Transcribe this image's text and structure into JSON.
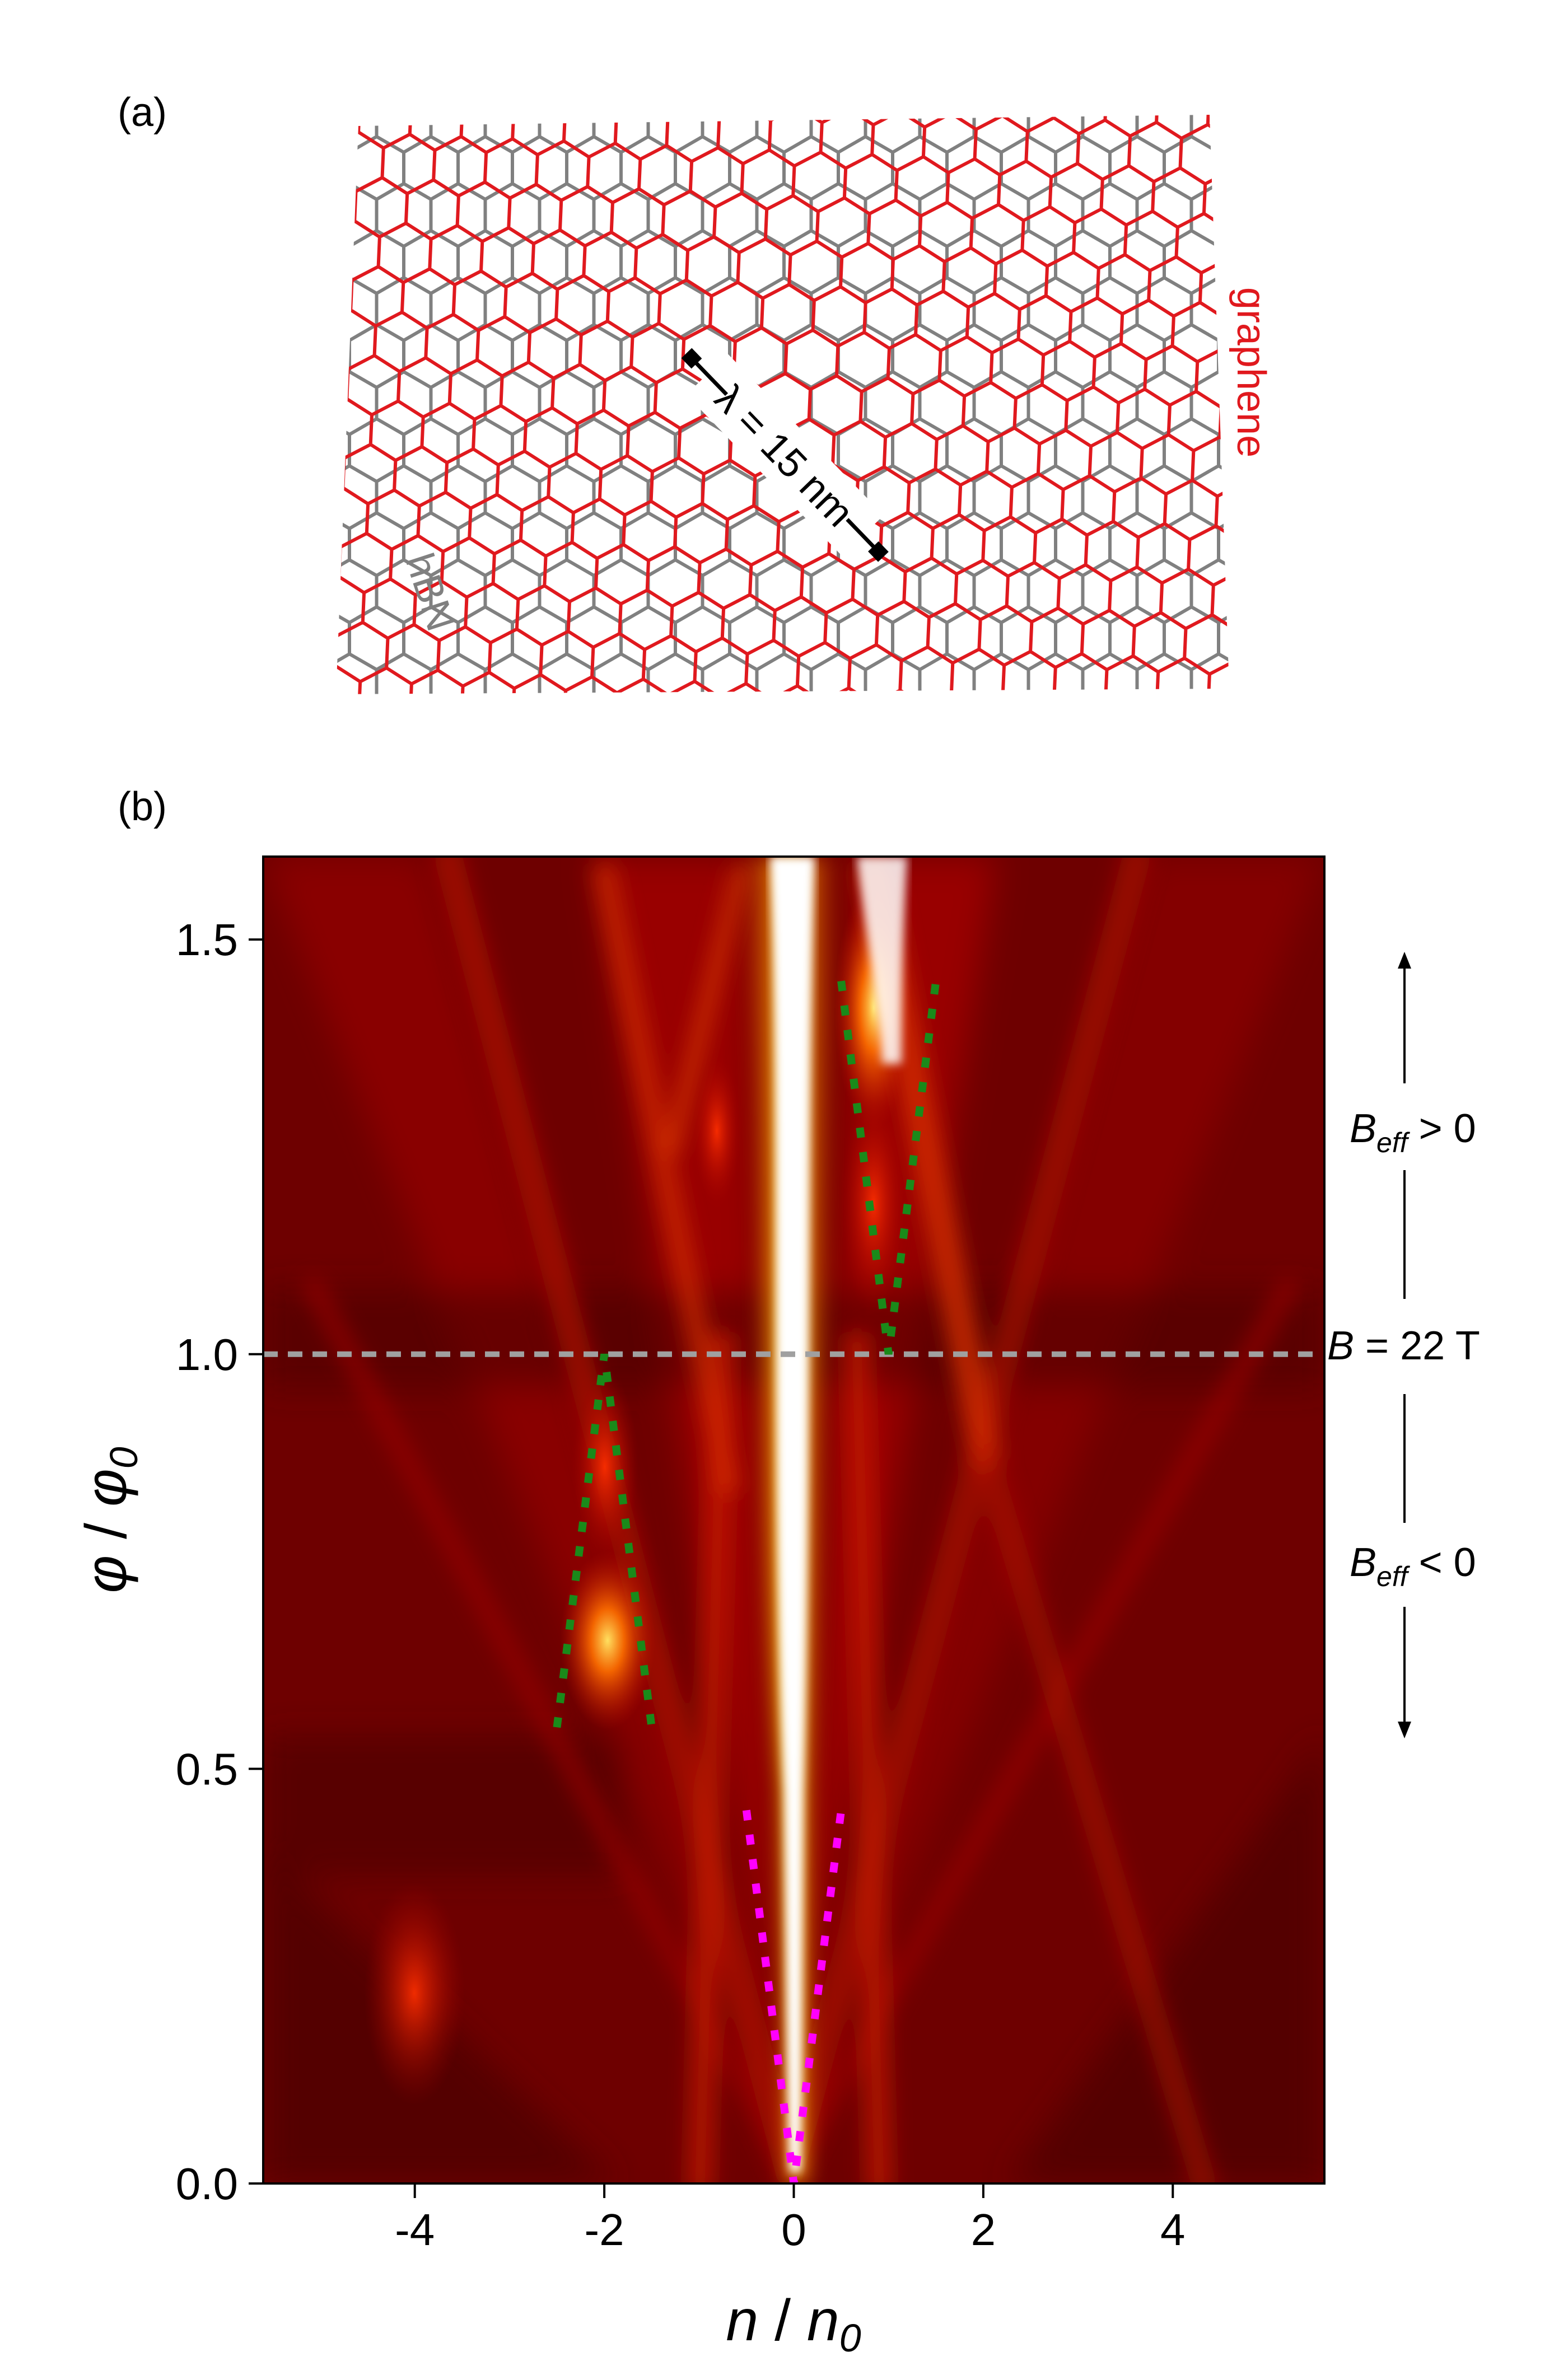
{
  "panel_a": {
    "label": "(a)",
    "length_label": "λ = 15 nm",
    "graphene_label": "graphene",
    "hbn_label": "hBN",
    "graphene_color": "#e0191e",
    "hbn_color": "#808080"
  },
  "panel_b": {
    "label": "(b)",
    "xlabel_main": "n",
    "xlabel_sep": " / ",
    "xlabel_sub_main": "n",
    "xlabel_sub": "0",
    "ylabel_main": "φ",
    "ylabel_sep": " / ",
    "ylabel_sub_main": "φ",
    "ylabel_sub": "0",
    "annotations": {
      "beff_pos_main": "B",
      "beff_pos_sub": "eff",
      "beff_pos_rel": " > 0",
      "beff_neg_main": "B",
      "beff_neg_sub": "eff",
      "beff_neg_rel": " < 0",
      "b_field_main": "B",
      "b_field_rest": " = 22 T"
    }
  },
  "chart_data": {
    "type": "heatmap",
    "xlim": [
      -5.6,
      5.6
    ],
    "ylim": [
      0.0,
      1.6
    ],
    "xticks": [
      -4,
      -2,
      0,
      2,
      4
    ],
    "yticks": [
      0.0,
      0.5,
      1.0,
      1.5
    ],
    "xtick_labels": [
      "-4",
      "-2",
      "0",
      "2",
      "4"
    ],
    "ytick_labels": [
      "0.0",
      "0.5",
      "1.0",
      "1.5"
    ],
    "colormap": [
      "#3a0000",
      "#8b0000",
      "#c81000",
      "#ff5a00",
      "#ffc800",
      "#ffffff"
    ],
    "reference_line": {
      "y": 1.0,
      "color": "#a0a0a0"
    },
    "dotted_guides": [
      {
        "color": "#1a8a1a",
        "points": [
          [
            -2.5,
            0.55
          ],
          [
            -2.0,
            1.0
          ],
          [
            -1.5,
            0.55
          ]
        ]
      },
      {
        "color": "#1a8a1a",
        "points": [
          [
            0.5,
            1.45
          ],
          [
            1.0,
            1.0
          ],
          [
            1.5,
            1.45
          ]
        ]
      },
      {
        "color": "#ff00ff",
        "points": [
          [
            -0.5,
            0.45
          ],
          [
            0.0,
            0.0
          ],
          [
            0.5,
            0.45
          ]
        ]
      }
    ]
  }
}
